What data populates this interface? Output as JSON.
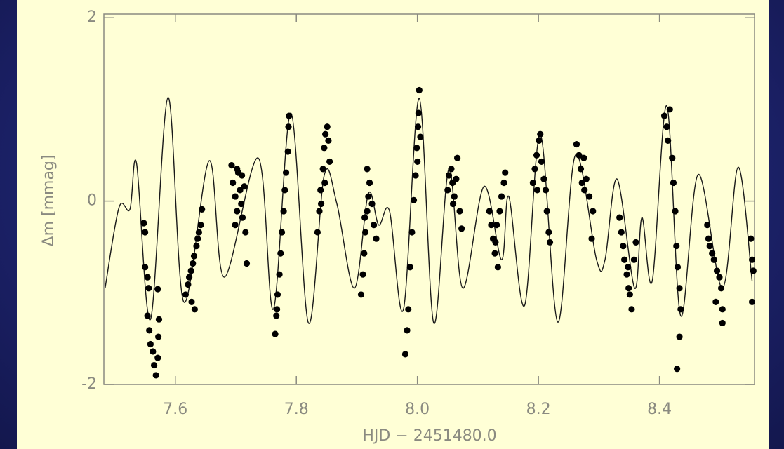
{
  "chart_data": {
    "type": "scatter",
    "xlabel": "HJD − 2451480.0",
    "ylabel": "Δm [mmag]",
    "xlim": [
      7.482,
      8.557
    ],
    "ylim": [
      -2.0,
      2.04
    ],
    "xticks": [
      7.6,
      7.8,
      {
        "value": 8.0,
        "label": "8.0"
      },
      8.2,
      8.4
    ],
    "yticks": [
      -2,
      0,
      2
    ],
    "point_color": "#000000",
    "line_color": "#1a1a1a",
    "points": {
      "x": [
        7.548,
        7.55,
        7.55,
        7.554,
        7.556,
        7.554,
        7.557,
        7.559,
        7.563,
        7.565,
        7.568,
        7.571,
        7.572,
        7.573,
        7.571,
        7.617,
        7.621,
        7.623,
        7.626,
        7.629,
        7.631,
        7.635,
        7.637,
        7.639,
        7.642,
        7.644,
        7.632,
        7.627,
        7.693,
        7.695,
        7.699,
        7.702,
        7.704,
        7.707,
        7.709,
        7.711,
        7.714,
        7.716,
        7.699,
        7.718,
        7.702,
        7.71,
        7.765,
        7.767,
        7.769,
        7.772,
        7.774,
        7.776,
        7.779,
        7.781,
        7.783,
        7.786,
        7.787,
        7.788,
        7.768,
        7.835,
        7.838,
        7.84,
        7.844,
        7.846,
        7.848,
        7.851,
        7.853,
        7.855,
        7.847,
        7.841,
        7.907,
        7.91,
        7.912,
        7.914,
        7.917,
        7.919,
        7.921,
        7.917,
        7.925,
        7.928,
        7.932,
        7.913,
        7.98,
        7.983,
        7.985,
        7.988,
        7.991,
        7.994,
        7.997,
        7.999,
        8.001,
        8.002,
        8.003,
        8.0,
        8.005,
        8.05,
        8.052,
        8.056,
        8.058,
        8.061,
        8.064,
        8.066,
        8.07,
        8.073,
        8.059,
        8.119,
        8.122,
        8.125,
        8.128,
        8.131,
        8.133,
        8.136,
        8.139,
        8.143,
        8.145,
        8.129,
        8.191,
        8.194,
        8.197,
        8.201,
        8.203,
        8.205,
        8.209,
        8.212,
        8.214,
        8.217,
        8.219,
        8.198,
        8.263,
        8.267,
        8.27,
        8.272,
        8.276,
        8.279,
        8.284,
        8.29,
        8.288,
        8.275,
        8.334,
        8.337,
        8.34,
        8.342,
        8.346,
        8.349,
        8.351,
        8.354,
        8.358,
        8.361,
        8.348,
        8.408,
        8.412,
        8.414,
        8.417,
        8.421,
        8.423,
        8.426,
        8.428,
        8.43,
        8.433,
        8.435,
        8.429,
        8.433,
        8.479,
        8.481,
        8.483,
        8.487,
        8.49,
        8.495,
        8.499,
        8.502,
        8.504,
        8.493,
        8.504,
        8.551,
        8.553,
        8.555,
        8.553
      ],
      "y": [
        -0.24,
        -0.34,
        -0.72,
        -0.83,
        -0.95,
        -1.25,
        -1.41,
        -1.56,
        -1.64,
        -1.79,
        -1.9,
        -1.71,
        -1.48,
        -1.29,
        -0.96,
        -1.02,
        -0.91,
        -0.83,
        -0.76,
        -0.68,
        -0.6,
        -0.49,
        -0.41,
        -0.34,
        -0.26,
        -0.09,
        -1.18,
        -1.1,
        0.39,
        0.2,
        0.05,
        -0.11,
        0.31,
        0.12,
        -0.03,
        -0.18,
        0.16,
        -0.34,
        -0.26,
        -0.68,
        0.35,
        0.28,
        -1.45,
        -1.25,
        -1.02,
        -0.8,
        -0.57,
        -0.34,
        -0.11,
        0.12,
        0.31,
        0.54,
        0.81,
        0.93,
        -1.18,
        -0.34,
        -0.11,
        0.12,
        0.35,
        0.58,
        0.73,
        0.81,
        0.66,
        0.43,
        0.2,
        -0.03,
        -1.02,
        -0.8,
        -0.57,
        -0.34,
        -0.11,
        0.05,
        0.2,
        0.35,
        -0.03,
        -0.26,
        -0.41,
        -0.18,
        -1.67,
        -1.41,
        -1.18,
        -0.72,
        -0.34,
        0.01,
        0.28,
        0.58,
        0.81,
        0.96,
        1.21,
        0.43,
        0.7,
        0.12,
        0.28,
        0.35,
        0.2,
        0.05,
        0.24,
        0.47,
        -0.11,
        -0.3,
        -0.03,
        -0.11,
        -0.26,
        -0.41,
        -0.57,
        -0.26,
        -0.72,
        -0.11,
        0.05,
        0.2,
        0.31,
        -0.45,
        0.2,
        0.35,
        0.5,
        0.66,
        0.73,
        0.43,
        0.24,
        0.12,
        -0.11,
        -0.34,
        -0.45,
        0.12,
        0.62,
        0.5,
        0.35,
        0.2,
        0.12,
        0.24,
        0.05,
        -0.11,
        -0.41,
        0.47,
        -0.18,
        -0.34,
        -0.49,
        -0.64,
        -0.8,
        -0.95,
        -1.02,
        -1.18,
        -0.64,
        -0.45,
        -0.72,
        0.93,
        0.81,
        0.66,
        1.0,
        0.47,
        0.2,
        -0.11,
        -0.49,
        -0.72,
        -0.95,
        -1.18,
        -1.83,
        -1.48,
        -0.26,
        -0.41,
        -0.49,
        -0.57,
        -0.64,
        -0.76,
        -0.83,
        -0.95,
        -1.18,
        -1.1,
        -1.33,
        -0.41,
        -0.64,
        -0.76,
        -1.1
      ]
    },
    "model": {
      "x": [
        7.484,
        7.507,
        7.525,
        7.536,
        7.559,
        7.588,
        7.614,
        7.656,
        7.681,
        7.737,
        7.762,
        7.791,
        7.82,
        7.846,
        7.867,
        7.896,
        7.919,
        7.936,
        7.954,
        7.977,
        8.003,
        8.027,
        8.052,
        8.075,
        8.11,
        8.139,
        8.151,
        8.177,
        8.203,
        8.232,
        8.261,
        8.296,
        8.31,
        8.33,
        8.359,
        8.371,
        8.388,
        8.412,
        8.435,
        8.464,
        8.504,
        8.53,
        8.553
      ],
      "y": [
        -0.95,
        -0.07,
        -0.09,
        0.41,
        -1.29,
        1.13,
        -1.1,
        0.44,
        -0.83,
        0.47,
        -1.18,
        0.96,
        -1.33,
        0.28,
        -0.03,
        -0.95,
        0.08,
        -0.26,
        -0.11,
        -1.18,
        1.12,
        -1.33,
        0.35,
        -0.95,
        0.16,
        -0.64,
        0.05,
        -1.14,
        0.73,
        -1.32,
        0.5,
        -0.64,
        -0.64,
        0.24,
        -0.95,
        -0.18,
        -0.87,
        1.04,
        -1.25,
        0.29,
        -0.95,
        0.37,
        -0.87
      ]
    }
  }
}
